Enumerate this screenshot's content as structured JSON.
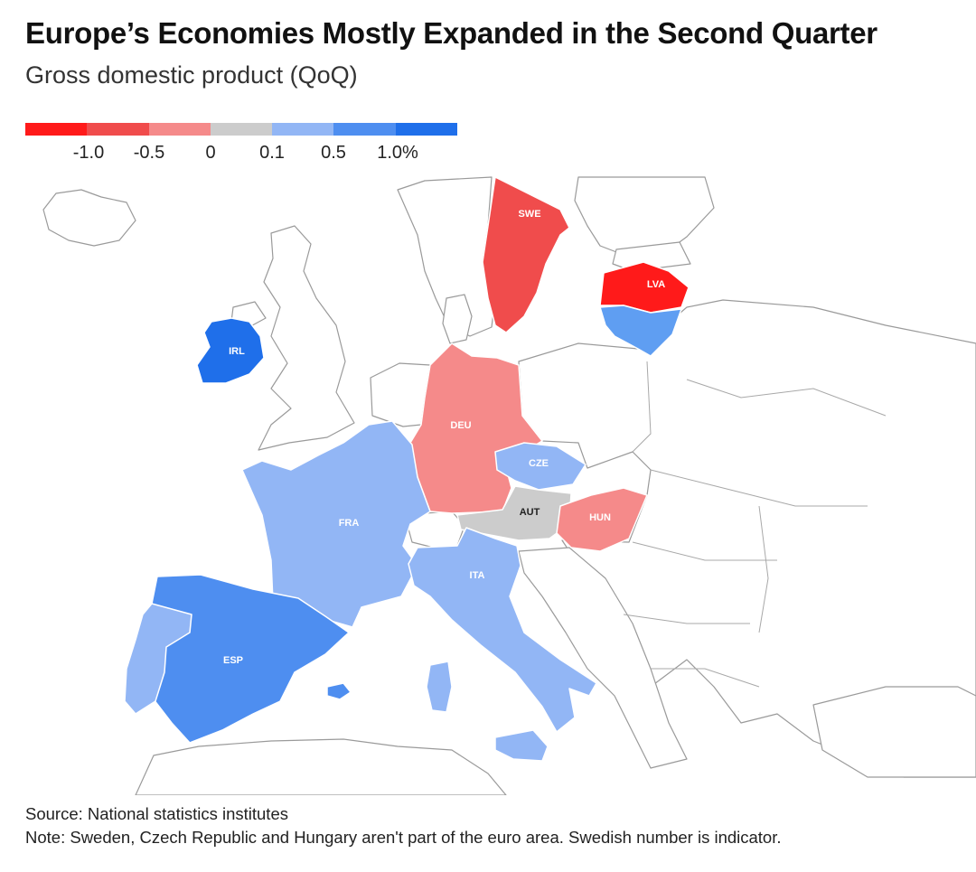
{
  "title": "Europe’s Economies Mostly Expanded in the Second Quarter",
  "subtitle": "Gross domestic product (QoQ)",
  "legend": {
    "colors": [
      "#ff1a1a",
      "#f04c4c",
      "#f58a8a",
      "#cccccc",
      "#92b6f5",
      "#4e8ef0",
      "#1f6fea"
    ],
    "ticks": [
      "-1.0",
      "-0.5",
      "0",
      "0.1",
      "0.5",
      "1.0%"
    ]
  },
  "countries": [
    {
      "code": "SWE",
      "color": "#f04c4c"
    },
    {
      "code": "LVA",
      "color": "#ff1a1a"
    },
    {
      "code": "LTU",
      "color": "#5f9ef2"
    },
    {
      "code": "IRL",
      "color": "#1f6fea"
    },
    {
      "code": "DEU",
      "color": "#f58a8a"
    },
    {
      "code": "CZE",
      "color": "#92b6f5"
    },
    {
      "code": "AUT",
      "color": "#cccccc"
    },
    {
      "code": "HUN",
      "color": "#f58a8a"
    },
    {
      "code": "FRA",
      "color": "#92b6f5"
    },
    {
      "code": "ITA",
      "color": "#92b6f5"
    },
    {
      "code": "ESP",
      "color": "#4e8ef0"
    },
    {
      "code": "PRT",
      "color": "#92b6f5"
    }
  ],
  "footer": {
    "source": "Source: National statistics institutes",
    "note": "Note: Sweden, Czech Republic and Hungary aren't part of the euro area. Swedish number is indicator."
  }
}
